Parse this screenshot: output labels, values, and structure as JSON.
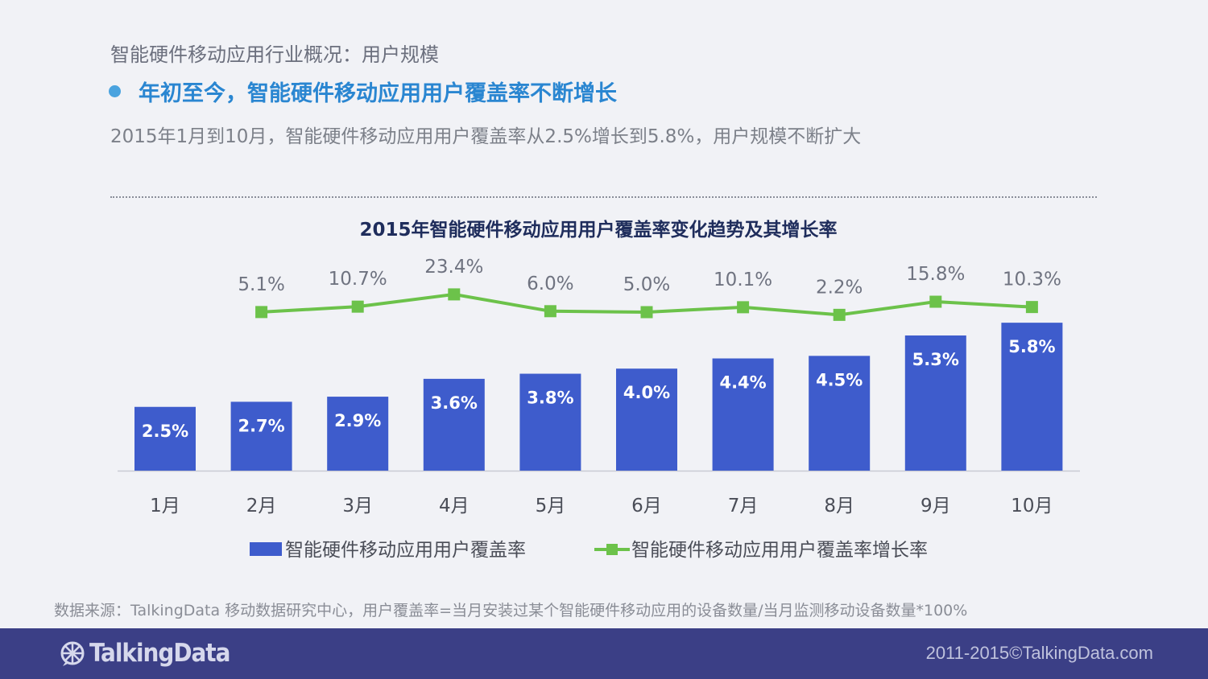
{
  "header": {
    "section_title": "智能硬件移动应用行业概况：用户规模",
    "headline": "年初至今，智能硬件移动应用用户覆盖率不断增长",
    "subtitle": "2015年1月到10月，智能硬件移动应用用户覆盖率从2.5%增长到5.8%，用户规模不断扩大"
  },
  "chart_data": {
    "type": "bar",
    "title": "2015年智能硬件移动应用用户覆盖率变化趋势及其增长率",
    "categories": [
      "1月",
      "2月",
      "3月",
      "4月",
      "5月",
      "6月",
      "7月",
      "8月",
      "9月",
      "10月"
    ],
    "series": [
      {
        "name": "智能硬件移动应用用户覆盖率",
        "type": "bar",
        "values": [
          2.5,
          2.7,
          2.9,
          3.6,
          3.8,
          4.0,
          4.4,
          4.5,
          5.3,
          5.8
        ],
        "labels": [
          "2.5%",
          "2.7%",
          "2.9%",
          "3.6%",
          "3.8%",
          "4.0%",
          "4.4%",
          "4.5%",
          "5.3%",
          "5.8%"
        ],
        "color": "#3e5ccc"
      },
      {
        "name": "智能硬件移动应用用户覆盖率增长率",
        "type": "line",
        "values": [
          null,
          5.1,
          10.7,
          23.4,
          6.0,
          5.0,
          10.1,
          2.2,
          15.8,
          10.3
        ],
        "labels": [
          "",
          "5.1%",
          "10.7%",
          "23.4%",
          "6.0%",
          "5.0%",
          "10.1%",
          "2.2%",
          "15.8%",
          "10.3%"
        ],
        "color": "#6cc24a"
      }
    ],
    "legend": "bottom",
    "grid": false
  },
  "source": "数据来源：TalkingData 移动数据研究中心，用户覆盖率=当月安装过某个智能硬件移动应用的设备数量/当月监测移动设备数量*100%",
  "footer": {
    "logo_text": "TalkingData",
    "copyright": "2011-2015©TalkingData.com",
    "color": "#3b3f86"
  }
}
